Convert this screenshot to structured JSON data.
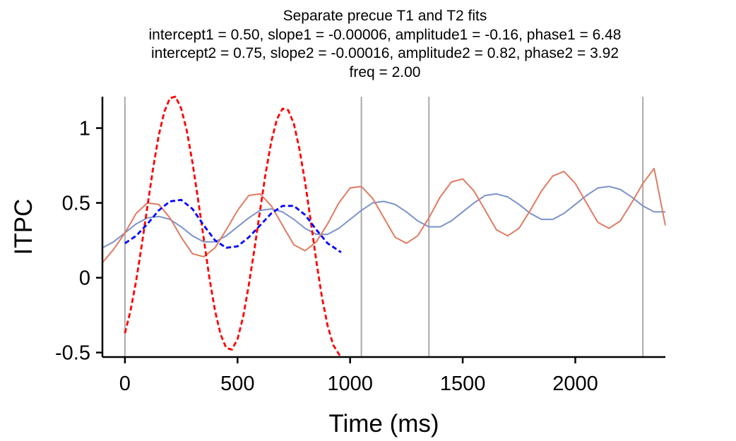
{
  "chart_data": {
    "type": "line",
    "title": "Separate precue T1 and T2 fits",
    "subtitle_lines": [
      "intercept1 = 0.50, slope1 = -0.00006, amplitude1 = -0.16, phase1 = 6.48",
      "intercept2 = 0.75, slope2 = -0.00016, amplitude2 = 0.82, phase2 = 3.92",
      "freq = 2.00"
    ],
    "xlabel": "Time (ms)",
    "ylabel": "ITPC",
    "xlim": [
      -100,
      2400
    ],
    "ylim": [
      -0.53,
      1.21
    ],
    "xticks": [
      0,
      500,
      1000,
      1500,
      2000
    ],
    "yticks": [
      -0.5,
      0,
      0.5,
      1
    ],
    "ytick_labels": [
      "-0.5",
      "0",
      "0.5",
      "1"
    ],
    "vertical_lines_x": [
      0,
      1050,
      1350,
      2300
    ],
    "vertical_line_color": "#aaaaaa",
    "grid": false,
    "legend": "none",
    "series": [
      {
        "style": "solid",
        "color": "#7b93c9",
        "x": [
          -100,
          -50,
          0,
          50,
          100,
          150,
          200,
          250,
          300,
          350,
          400,
          450,
          500,
          550,
          600,
          650,
          700,
          750,
          800,
          850,
          900,
          950,
          1000,
          1050,
          1100,
          1150,
          1200,
          1250,
          1300,
          1350,
          1400,
          1450,
          1500,
          1550,
          1600,
          1650,
          1700,
          1750,
          1800,
          1850,
          1900,
          1950,
          2000,
          2050,
          2100,
          2150,
          2200,
          2250,
          2300,
          2350,
          2400
        ],
        "y": [
          0.2,
          0.24,
          0.3,
          0.36,
          0.4,
          0.41,
          0.39,
          0.34,
          0.28,
          0.24,
          0.24,
          0.28,
          0.34,
          0.4,
          0.45,
          0.46,
          0.44,
          0.39,
          0.33,
          0.29,
          0.29,
          0.33,
          0.39,
          0.45,
          0.5,
          0.51,
          0.49,
          0.44,
          0.38,
          0.34,
          0.34,
          0.38,
          0.44,
          0.5,
          0.55,
          0.56,
          0.54,
          0.49,
          0.43,
          0.39,
          0.39,
          0.43,
          0.49,
          0.55,
          0.6,
          0.61,
          0.59,
          0.54,
          0.48,
          0.44,
          0.44
        ]
      },
      {
        "style": "solid",
        "color": "#e07b62",
        "x": [
          -100,
          -50,
          0,
          50,
          100,
          150,
          200,
          250,
          300,
          350,
          400,
          450,
          500,
          550,
          600,
          650,
          700,
          750,
          800,
          850,
          900,
          950,
          1000,
          1050,
          1100,
          1150,
          1200,
          1250,
          1300,
          1350,
          1400,
          1450,
          1500,
          1550,
          1600,
          1650,
          1700,
          1750,
          1800,
          1850,
          1900,
          1950,
          2000,
          2050,
          2100,
          2150,
          2200,
          2250,
          2300,
          2350,
          2400
        ],
        "y": [
          0.1,
          0.19,
          0.3,
          0.43,
          0.5,
          0.49,
          0.4,
          0.27,
          0.16,
          0.14,
          0.2,
          0.32,
          0.45,
          0.55,
          0.56,
          0.48,
          0.35,
          0.22,
          0.18,
          0.24,
          0.36,
          0.5,
          0.6,
          0.61,
          0.53,
          0.4,
          0.27,
          0.23,
          0.28,
          0.4,
          0.54,
          0.64,
          0.66,
          0.58,
          0.45,
          0.32,
          0.28,
          0.33,
          0.45,
          0.58,
          0.68,
          0.71,
          0.63,
          0.5,
          0.37,
          0.33,
          0.38,
          0.5,
          0.63,
          0.73,
          0.35
        ]
      },
      {
        "style": "dashed",
        "color": "#ff0000",
        "x": [
          0,
          25,
          50,
          75,
          100,
          125,
          150,
          175,
          200,
          225,
          250,
          275,
          300,
          325,
          350,
          375,
          400,
          425,
          450,
          475,
          500,
          525,
          550,
          575,
          600,
          625,
          650,
          675,
          700,
          725,
          750,
          775,
          800,
          825,
          850,
          875,
          900,
          925,
          950,
          960
        ],
        "y": [
          -0.37,
          -0.22,
          -0.02,
          0.22,
          0.48,
          0.73,
          0.95,
          1.11,
          1.2,
          1.21,
          1.13,
          0.98,
          0.77,
          0.52,
          0.26,
          0.0,
          -0.22,
          -0.38,
          -0.47,
          -0.48,
          -0.41,
          -0.26,
          -0.05,
          0.19,
          0.45,
          0.7,
          0.91,
          1.06,
          1.13,
          1.12,
          1.03,
          0.86,
          0.64,
          0.38,
          0.11,
          -0.13,
          -0.32,
          -0.45,
          -0.51,
          -0.53
        ]
      },
      {
        "style": "dashed",
        "color": "#0000ff",
        "x": [
          0,
          50,
          100,
          150,
          200,
          250,
          300,
          350,
          400,
          450,
          500,
          550,
          600,
          650,
          700,
          750,
          800,
          850,
          900,
          950,
          960
        ],
        "y": [
          0.23,
          0.28,
          0.36,
          0.45,
          0.51,
          0.52,
          0.46,
          0.35,
          0.25,
          0.2,
          0.21,
          0.27,
          0.35,
          0.43,
          0.48,
          0.48,
          0.42,
          0.32,
          0.23,
          0.18,
          0.17
        ]
      }
    ]
  }
}
